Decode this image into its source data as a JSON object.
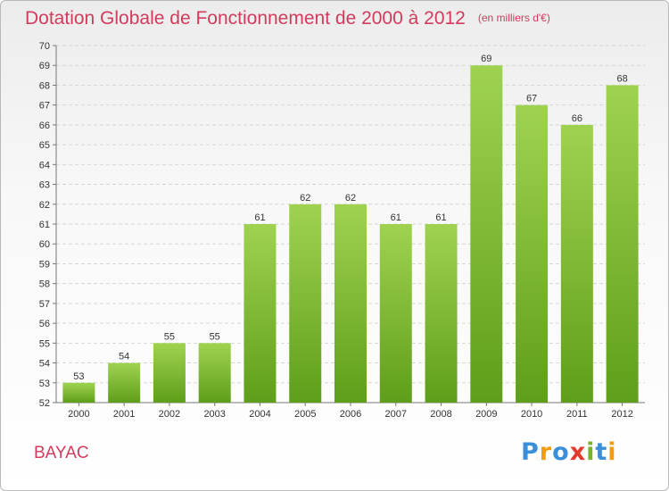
{
  "page": {
    "subtitle": "(en milliers d'€)",
    "commune": "BAYAC",
    "logo": {
      "letters": [
        {
          "char": "P",
          "color": "#3a8fd8"
        },
        {
          "char": "r",
          "color": "#f39c12"
        },
        {
          "char": "o",
          "color": "#3a8fd8"
        },
        {
          "char": "x",
          "color": "#e23b2e"
        },
        {
          "char": "i",
          "color": "#7ab32e"
        },
        {
          "char": "t",
          "color": "#3a8fd8"
        },
        {
          "char": "i",
          "color": "#f39c12"
        }
      ]
    }
  },
  "chart_data": {
    "type": "bar",
    "title": "Dotation Globale de Fonctionnement de 2000 à 2012",
    "categories": [
      "2000",
      "2001",
      "2002",
      "2003",
      "2004",
      "2005",
      "2006",
      "2007",
      "2008",
      "2009",
      "2010",
      "2011",
      "2012"
    ],
    "values": [
      53,
      54,
      55,
      55,
      61,
      62,
      62,
      61,
      61,
      69,
      67,
      66,
      68
    ],
    "ylim": [
      52,
      70
    ],
    "yticks": [
      52,
      53,
      54,
      55,
      56,
      57,
      58,
      59,
      60,
      61,
      62,
      63,
      64,
      65,
      66,
      67,
      68,
      69,
      70
    ],
    "grid": true,
    "bar_color_top": "#9fd34f",
    "bar_color_bottom": "#5f9e1a",
    "title_color": "#d23b5c"
  }
}
